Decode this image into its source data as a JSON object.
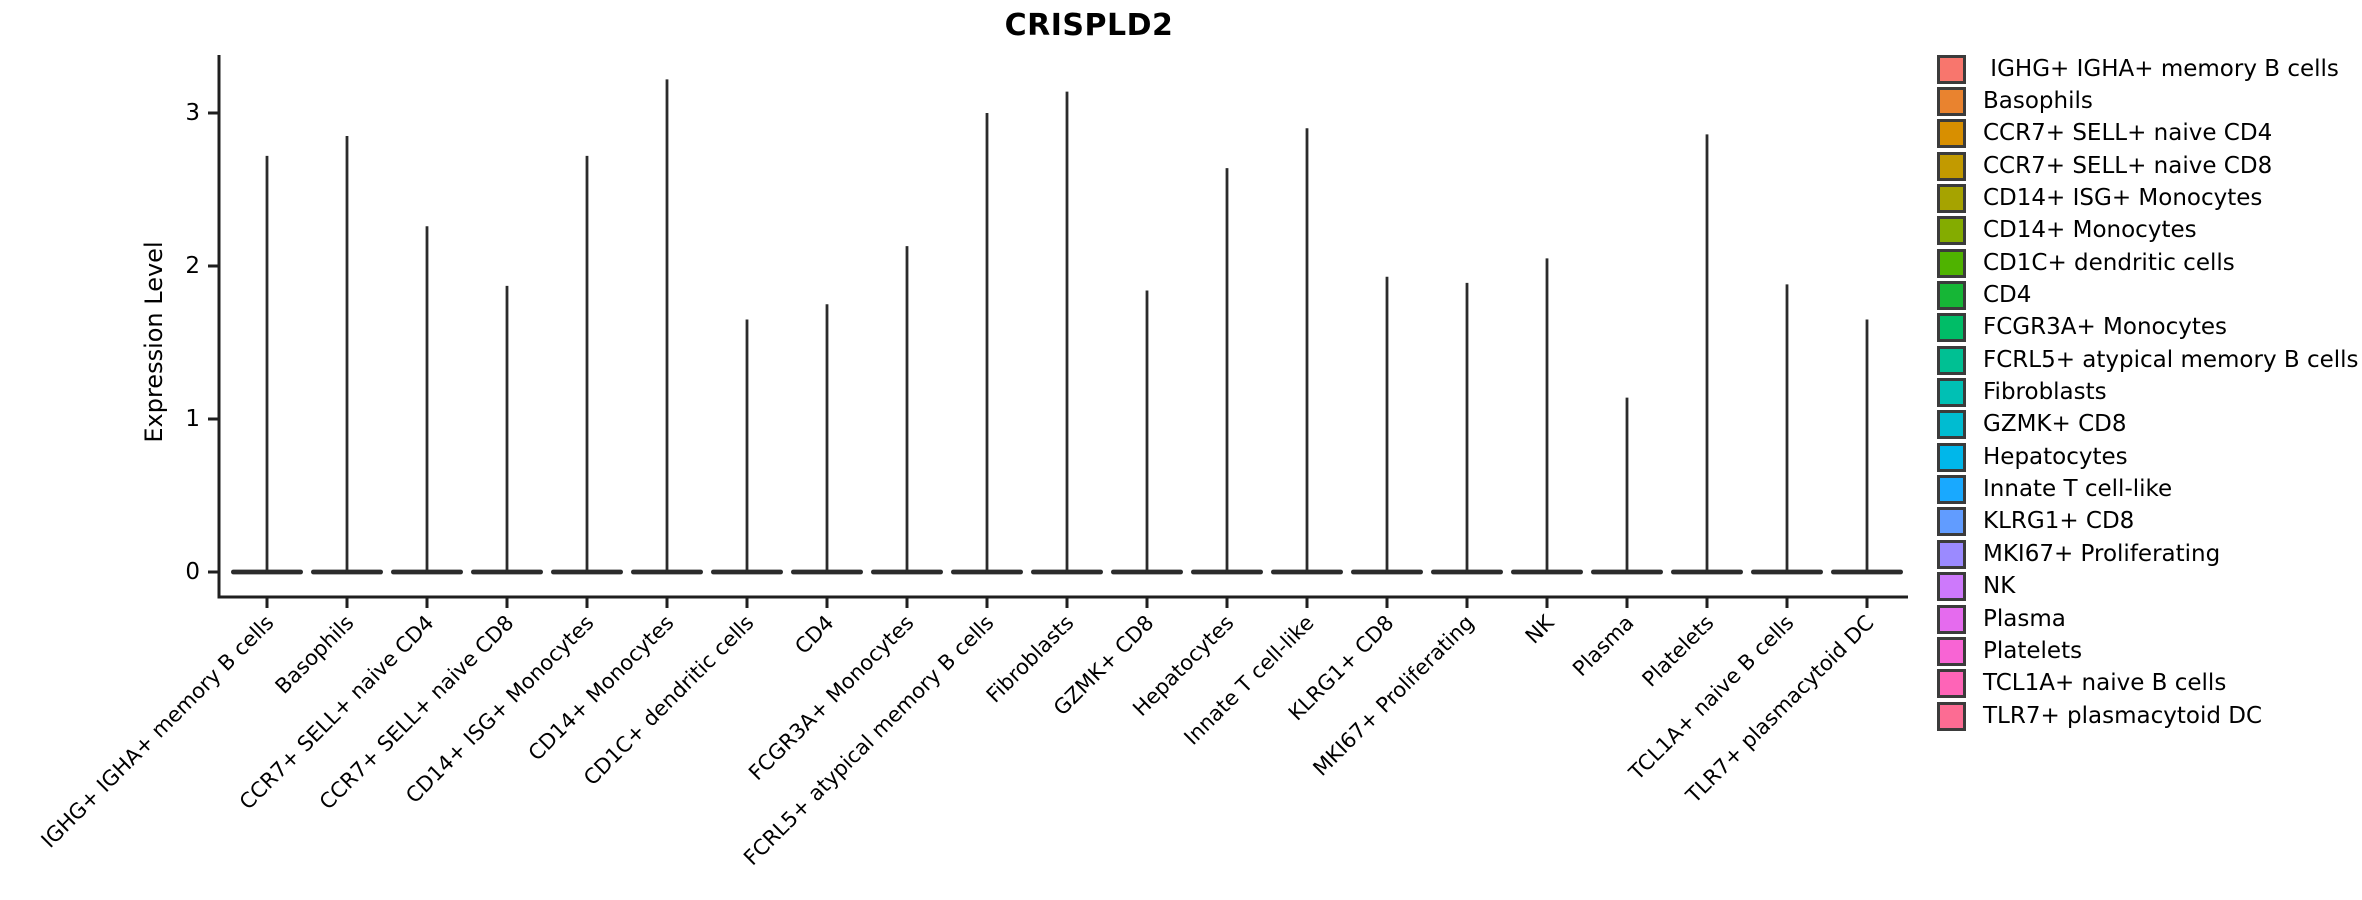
{
  "figure": {
    "title": "CRISPLD2",
    "y_axis_label": "Expression Level"
  },
  "chart_data": {
    "type": "violin",
    "title": "CRISPLD2",
    "xlabel": "",
    "ylabel": "Expression Level",
    "y_ticks": [
      0,
      1,
      2,
      3
    ],
    "ylim": [
      -0.15,
      3.4
    ],
    "grid": false,
    "legend_position": "right",
    "violin_note": "Most cells have expression 0, so each violin renders as a flat dark base at y=0 plus a thin density spike rising to the listed peak expression value.",
    "series": [
      {
        "label": "IGHG+ IGHA+ memory B cells",
        "legend_label": " IGHG+ IGHA+ memory B cells",
        "color": "#F8766D",
        "peak": 2.72
      },
      {
        "label": "Basophils",
        "color": "#E9832F",
        "peak": 2.85
      },
      {
        "label": "CCR7+ SELL+ naive CD4",
        "color": "#D88F00",
        "peak": 2.26
      },
      {
        "label": "CCR7+ SELL+ naive CD8",
        "color": "#C29A00",
        "peak": 1.87
      },
      {
        "label": "CD14+ ISG+ Monocytes",
        "color": "#A6A300",
        "peak": 2.72
      },
      {
        "label": "CD14+ Monocytes",
        "color": "#84AC00",
        "peak": 3.22
      },
      {
        "label": "CD1C+ dendritic cells",
        "color": "#4FB300",
        "peak": 1.65
      },
      {
        "label": "CD4",
        "color": "#16B636",
        "peak": 1.75
      },
      {
        "label": "FCGR3A+ Monocytes",
        "color": "#00BD67",
        "peak": 2.13
      },
      {
        "label": "FCRL5+ atypical memory B cells",
        "color": "#00C093",
        "peak": 3.0
      },
      {
        "label": "Fibroblasts",
        "color": "#00C0B4",
        "peak": 3.14
      },
      {
        "label": "GZMK+ CD8",
        "color": "#00BCD1",
        "peak": 1.84
      },
      {
        "label": "Hepatocytes",
        "color": "#00B7EA",
        "peak": 2.64
      },
      {
        "label": "Innate T cell-like",
        "color": "#19A9FF",
        "peak": 2.9
      },
      {
        "label": "KLRG1+ CD8",
        "color": "#619CFF",
        "peak": 1.93
      },
      {
        "label": "MKI67+ Proliferating",
        "color": "#9B8AFF",
        "peak": 1.89
      },
      {
        "label": "NK",
        "color": "#CD79FB",
        "peak": 2.05
      },
      {
        "label": "Plasma",
        "color": "#E56BEE",
        "peak": 1.14
      },
      {
        "label": "Platelets",
        "color": "#F864D4",
        "peak": 2.86
      },
      {
        "label": "TCL1A+ naive B cells",
        "color": "#FE64B7",
        "peak": 1.88
      },
      {
        "label": "TLR7+ plasmacytoid DC",
        "color": "#FC6C93",
        "peak": 1.65
      }
    ]
  }
}
